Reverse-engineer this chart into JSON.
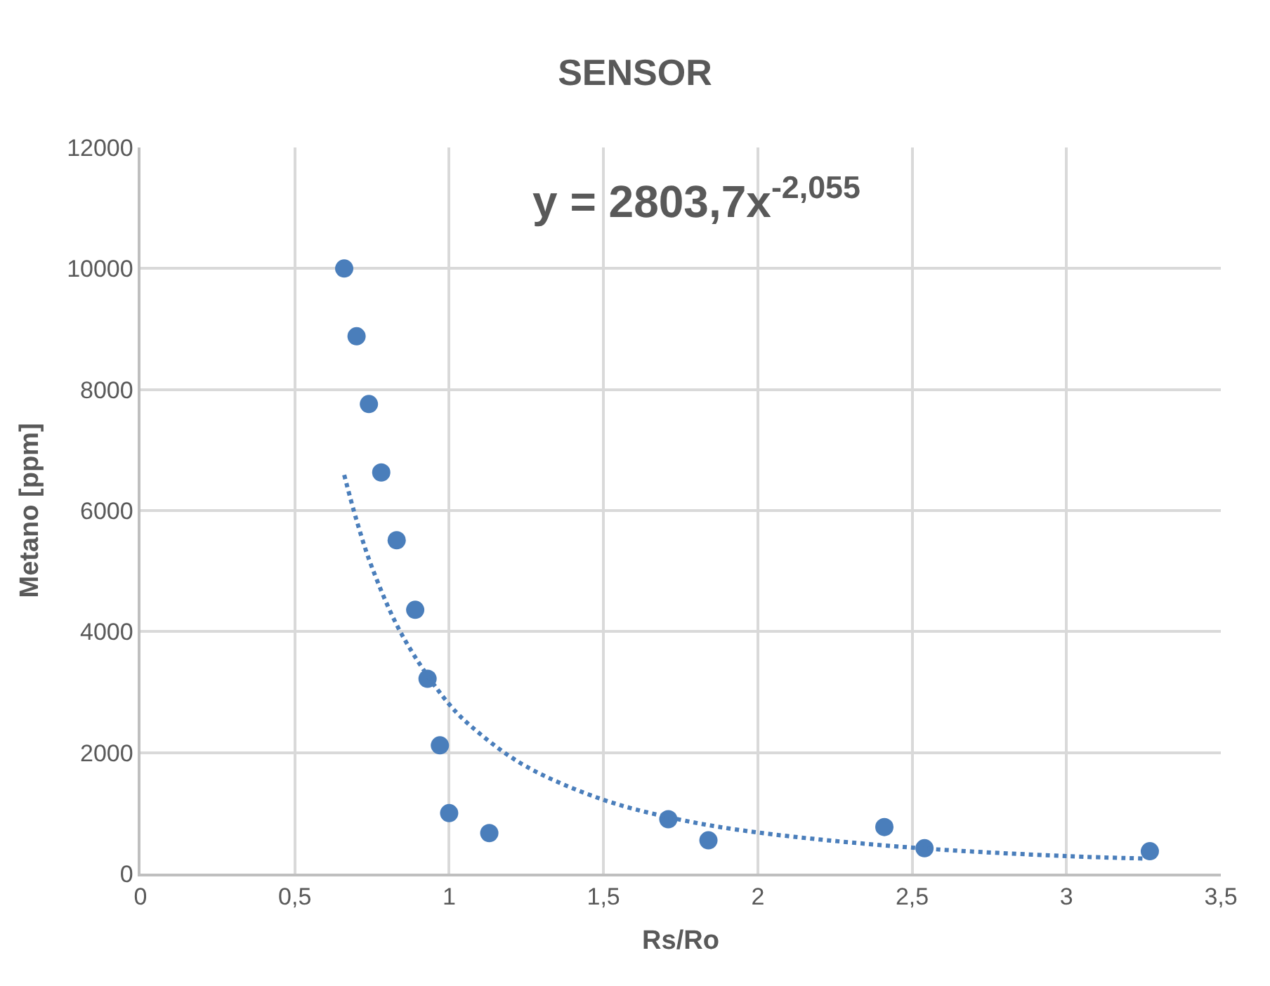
{
  "chart_data": {
    "type": "scatter",
    "title": "SENSOR",
    "xlabel": "Rs/Ro",
    "ylabel": "Metano [ppm]",
    "series": [
      {
        "color": "#4a7ebb",
        "x": [
          0.66,
          0.7,
          0.74,
          0.78,
          0.83,
          0.89,
          0.93,
          0.97,
          1.0,
          1.13,
          1.71,
          1.84,
          2.41,
          2.54,
          3.27
        ],
        "values": [
          10000,
          8880,
          7760,
          6630,
          5510,
          4360,
          3220,
          2120,
          1000,
          670,
          900,
          550,
          770,
          420,
          370
        ]
      },
      {
        "type": "line",
        "color": "#4a7ebb",
        "line_style": "dotted",
        "marker": "none",
        "x": [
          0.66,
          0.7,
          0.75,
          0.85,
          1.0,
          1.1,
          1.25,
          1.5,
          1.75,
          2.0,
          2.5,
          3.0,
          3.25
        ],
        "values": [
          6590,
          5840,
          5060,
          3920,
          2800,
          2310,
          1770,
          1220,
          890,
          680,
          430,
          290,
          250
        ]
      }
    ],
    "annotations": [
      "y = 2803,7x$^{-2,055}$"
    ],
    "xlim": [
      0,
      3.5
    ],
    "xticks": [
      0,
      {
        "value": 0.5,
        "label": "0,5"
      },
      1,
      {
        "value": 1.5,
        "label": "1,5"
      },
      2,
      {
        "value": 2.5,
        "label": "2,5"
      },
      3,
      {
        "value": 3.5,
        "label": "3,5"
      }
    ],
    "ylim": [
      0,
      12000
    ],
    "yticks": [
      0,
      2000,
      4000,
      6000,
      8000,
      10000,
      12000
    ],
    "grid": true,
    "marker": "circle"
  }
}
